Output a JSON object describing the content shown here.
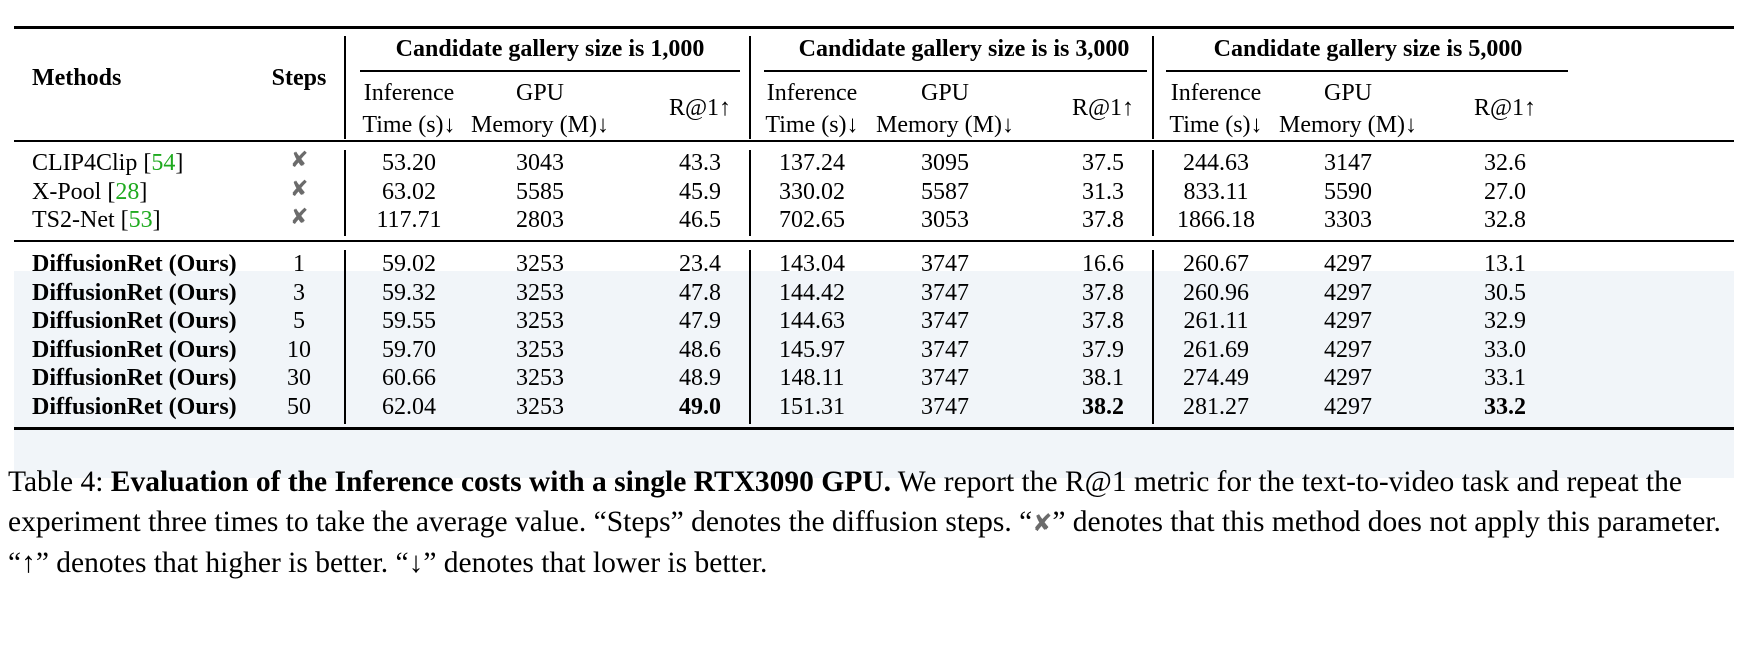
{
  "table": {
    "headers": {
      "methods": "Methods",
      "steps": "Steps",
      "groups": [
        "Candidate gallery size is 1,000",
        "Candidate gallery size is is 3,000",
        "Candidate gallery size is 5,000"
      ],
      "sub": {
        "time_1": "Inference",
        "time_2": "Time (s)↓",
        "mem_1": "GPU",
        "mem_2": "Memory (M)↓",
        "r1": "R@1↑"
      }
    },
    "baseline_rows": [
      {
        "name": "CLIP4Clip",
        "cite": "54",
        "steps_icon": "x-mark-icon",
        "steps_glyph": "✘",
        "v": [
          "53.20",
          "3043",
          "43.3",
          "137.24",
          "3095",
          "37.5",
          "244.63",
          "3147",
          "32.6"
        ]
      },
      {
        "name": "X-Pool",
        "cite": "28",
        "steps_icon": "x-mark-icon",
        "steps_glyph": "✘",
        "v": [
          "63.02",
          "5585",
          "45.9",
          "330.02",
          "5587",
          "31.3",
          "833.11",
          "5590",
          "27.0"
        ]
      },
      {
        "name": "TS2-Net",
        "cite": "53",
        "steps_icon": "x-mark-icon",
        "steps_glyph": "✘",
        "v": [
          "117.71",
          "2803",
          "46.5",
          "702.65",
          "3053",
          "37.8",
          "1866.18",
          "3303",
          "32.8"
        ]
      }
    ],
    "ours_rows": [
      {
        "name": "DiffusionRet (Ours)",
        "steps": "1",
        "v": [
          "59.02",
          "3253",
          "23.4",
          "143.04",
          "3747",
          "16.6",
          "260.67",
          "4297",
          "13.1"
        ]
      },
      {
        "name": "DiffusionRet (Ours)",
        "steps": "3",
        "v": [
          "59.32",
          "3253",
          "47.8",
          "144.42",
          "3747",
          "37.8",
          "260.96",
          "4297",
          "30.5"
        ]
      },
      {
        "name": "DiffusionRet (Ours)",
        "steps": "5",
        "v": [
          "59.55",
          "3253",
          "47.9",
          "144.63",
          "3747",
          "37.8",
          "261.11",
          "4297",
          "32.9"
        ]
      },
      {
        "name": "DiffusionRet (Ours)",
        "steps": "10",
        "v": [
          "59.70",
          "3253",
          "48.6",
          "145.97",
          "3747",
          "37.9",
          "261.69",
          "4297",
          "33.0"
        ]
      },
      {
        "name": "DiffusionRet (Ours)",
        "steps": "30",
        "v": [
          "60.66",
          "3253",
          "48.9",
          "148.11",
          "3747",
          "38.1",
          "274.49",
          "4297",
          "33.1"
        ]
      },
      {
        "name": "DiffusionRet (Ours)",
        "steps": "50",
        "v": [
          "62.04",
          "3253",
          "49.0",
          "151.31",
          "3747",
          "38.2",
          "281.27",
          "4297",
          "33.2"
        ],
        "bold_cols": [
          2,
          5,
          8
        ]
      }
    ]
  },
  "caption": {
    "label": "Table 4: ",
    "title": "Evaluation of the Inference costs with a single RTX3090 GPU.",
    "text_1": " We report the R@1 metric for the text-to-video task and repeat the experiment three times to take the average value. “Steps” denotes the diffusion steps. “",
    "x_glyph": "✘",
    "text_2": "” denotes that this method does not apply this parameter. “↑” denotes that higher is better. “↓” denotes that lower is better."
  }
}
